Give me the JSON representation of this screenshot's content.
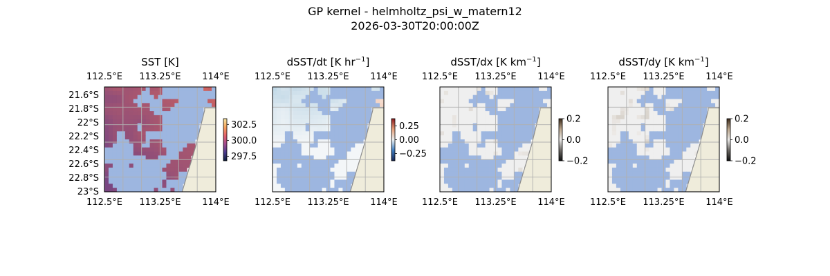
{
  "figure": {
    "title_line1": "GP kernel - helmholtz_psi_w_matern12",
    "title_line2": "2026-03-30T20:00:00Z"
  },
  "colors": {
    "land": "#efecdb",
    "coast": "#8c8c8c",
    "mask": "#9db6e0",
    "grid": "#b0b0b0"
  },
  "chart_data": [
    {
      "type": "heatmap",
      "title": "SST [K]",
      "title_sup": "",
      "title_tail": "",
      "xticks": [
        "112.5°E",
        "113.25°E",
        "114°E"
      ],
      "yticks": [
        "21.6°S",
        "21.8°S",
        "22°S",
        "22.2°S",
        "22.4°S",
        "22.6°S",
        "22.8°S",
        "23°S"
      ],
      "show_lat_labels": true,
      "xlim": [
        112.5,
        114.0
      ],
      "ylim": [
        -23.0,
        -21.5
      ],
      "colorbar": {
        "ticks": [
          "302.5",
          "300.0",
          "297.5"
        ],
        "range": [
          296.8,
          303.4
        ],
        "cmap": "thermal"
      },
      "field_trend": "warmer toward the northeast (~302 K), cooler toward the southwest (~299 K)"
    },
    {
      "type": "heatmap",
      "title": "dSST/dt [K hr",
      "title_sup": "−1",
      "title_tail": "]",
      "xticks": [
        "112.5°E",
        "113.25°E",
        "114°E"
      ],
      "yticks": [],
      "show_lat_labels": false,
      "xlim": [
        112.5,
        114.0
      ],
      "ylim": [
        -23.0,
        -21.5
      ],
      "colorbar": {
        "ticks": [
          "0.25",
          "0.00",
          "−0.25"
        ],
        "range": [
          -0.38,
          0.38
        ],
        "cmap": "balance"
      },
      "field_trend": "near zero, weak blue (negative) in the north, weak orange (positive) patches in the east"
    },
    {
      "type": "heatmap",
      "title": "dSST/dx [K km",
      "title_sup": "−1",
      "title_tail": "]",
      "xticks": [
        "112.5°E",
        "113.25°E",
        "114°E"
      ],
      "yticks": [],
      "show_lat_labels": false,
      "xlim": [
        112.5,
        114.0
      ],
      "ylim": [
        -23.0,
        -21.5
      ],
      "colorbar": {
        "ticks": [
          "0.2",
          "0.0",
          "−0.2"
        ],
        "range": [
          -0.2,
          0.2
        ],
        "cmap": "diff"
      },
      "field_trend": "near zero everywhere"
    },
    {
      "type": "heatmap",
      "title": "dSST/dy [K km",
      "title_sup": "−1",
      "title_tail": "]",
      "xticks": [
        "112.5°E",
        "113.25°E",
        "114°E"
      ],
      "yticks": [],
      "show_lat_labels": false,
      "xlim": [
        112.5,
        114.0
      ],
      "ylim": [
        -23.0,
        -21.5
      ],
      "colorbar": {
        "ticks": [
          "0.2",
          "0.0",
          "−0.2"
        ],
        "range": [
          -0.2,
          0.2
        ],
        "cmap": "diff"
      },
      "field_trend": "near zero everywhere"
    }
  ]
}
